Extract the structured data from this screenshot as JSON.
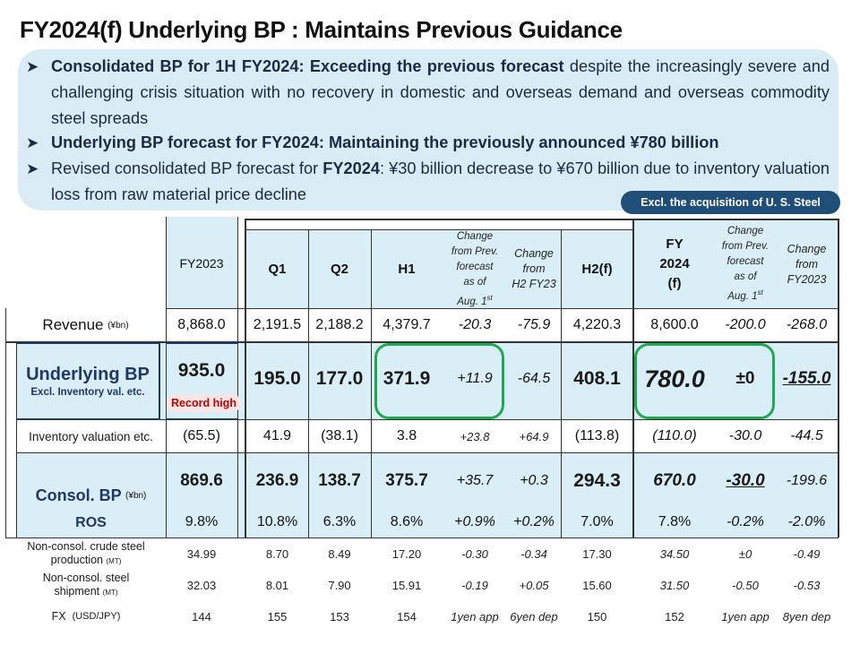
{
  "title": "FY2024(f) Underlying BP : Maintains Previous Guidance",
  "bullets": {
    "b1": {
      "bold": "Consolidated BP for 1H FY2024: Exceeding the previous forecast",
      "rest": " despite the increasingly severe and challenging crisis situation with no recovery in domestic and overseas demand and overseas commodity steel spreads"
    },
    "b2": {
      "bold": "Underlying BP forecast for FY2024: Maintaining the previously announced ¥780 billion"
    },
    "b3": {
      "pre": "Revised consolidated BP forecast for ",
      "bold": "FY2024",
      "rest": ": ¥30 billion decrease to ¥670 billion due to inventory valuation loss from raw material price decline"
    }
  },
  "excl_badge": "Excl. the acquisition of U. S. Steel",
  "record_badge": "Record high",
  "headers": {
    "fy2023": "FY2023",
    "q1": "Q1",
    "q2": "Q2",
    "h1": "H1",
    "chg_prev_1": {
      "l1": "Change",
      "l2": "from Prev.",
      "l3": "forecast",
      "l4": "as of",
      "l5": "Aug. 1",
      "sup": "st"
    },
    "chg_h2fy23": {
      "l1": "Change",
      "l2": "from",
      "l3": "H2 FY23"
    },
    "h2f": "H2(f)",
    "fy2024f": {
      "l1": "FY",
      "l2": "2024",
      "l3": "(f)"
    },
    "chg_prev_2": {
      "l1": "Change",
      "l2": "from Prev.",
      "l3": "forecast",
      "l4": "as of",
      "l5": "Aug. 1",
      "sup": "st"
    },
    "chg_fy2023": {
      "l1": "Change",
      "l2": "from",
      "l3": "FY2023"
    }
  },
  "rows": {
    "revenue": {
      "label": "Revenue",
      "unit": "(¥bn)",
      "values": [
        "8,868.0",
        "2,191.5",
        "2,188.2",
        "4,379.7",
        "-20.3",
        "-75.9",
        "4,220.3",
        "8,600.0",
        "-200.0",
        "-268.0"
      ]
    },
    "underlying": {
      "label": "Underlying BP",
      "sub": "Excl. Inventory val. etc.",
      "values": [
        "935.0",
        "195.0",
        "177.0",
        "371.9",
        "+11.9",
        "-64.5",
        "408.1",
        "780.0",
        "±0",
        "-155.0"
      ]
    },
    "inventory": {
      "label": "Inventory valuation etc.",
      "values": [
        "(65.5)",
        "41.9",
        "(38.1)",
        "3.8",
        "+23.8",
        "+64.9",
        "(113.8)",
        "(110.0)",
        "-30.0",
        "-44.5"
      ]
    },
    "consol": {
      "label": "Consol. BP",
      "unit": "(¥bn)",
      "values": [
        "869.6",
        "236.9",
        "138.7",
        "375.7",
        "+35.7",
        "+0.3",
        "294.3",
        "670.0",
        "-30.0",
        "-199.6"
      ]
    },
    "ros": {
      "label": "ROS",
      "values": [
        "9.8%",
        "10.8%",
        "6.3%",
        "8.6%",
        "+0.9%",
        "+0.2%",
        "7.0%",
        "7.8%",
        "-0.2%",
        "-2.0%"
      ]
    },
    "crude": {
      "label1": "Non-consol. crude steel",
      "label2": "production",
      "unit": "(MT)",
      "values": [
        "34.99",
        "8.70",
        "8.49",
        "17.20",
        "-0.30",
        "-0.34",
        "17.30",
        "34.50",
        "±0",
        "-0.49"
      ]
    },
    "shipment": {
      "label1": "Non-consol. steel",
      "label2": "shipment",
      "unit": "(MT)",
      "values": [
        "32.03",
        "8.01",
        "7.90",
        "15.91",
        "-0.19",
        "+0.05",
        "15.60",
        "31.50",
        "-0.50",
        "-0.53"
      ]
    },
    "fx": {
      "label": "FX",
      "unit": "(USD/JPY)",
      "values": [
        "144",
        "155",
        "153",
        "154",
        "1yen app",
        "6yen dep",
        "150",
        "152",
        "1yen app",
        "8yen dep"
      ]
    }
  }
}
